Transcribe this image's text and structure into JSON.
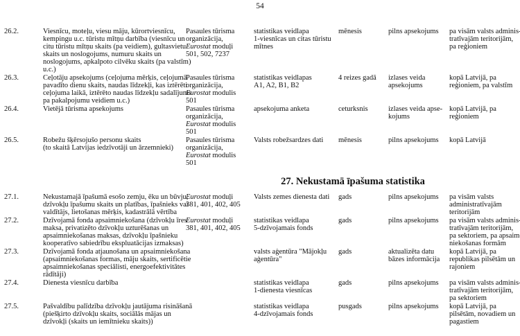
{
  "page_number": "54",
  "section_27_title": "27. Nekustamā īpašuma statistika",
  "rows": [
    {
      "num": "26.2.",
      "desc": "Viesnīcu, moteļu, viesu māju, kūrortviesnīcu,\nkempingu u.c. tūristu mītņu darbība (viesnīcu un\ncitu tūristu mītņu skaits (pa veidiem), gultasvietu\nskaits un noslogojums, numuru skaits un\nnoslogojums, apkalpoto cilvēku skaits (pa valstīm)\nu.c.)",
      "src_org": "Pasaules tūrisma\norganizācija,\n",
      "src_eu": "Eurostat",
      "src_rest": " moduļi\n501, 502, 7237",
      "form": "statistikas veidlapa\n1-viesnīcas un citas tūristu\nmītnes",
      "freq": "mēnesis",
      "meth": "pilns apsekojums",
      "det": "pa visām valsts adminis-\ntratīvajām teritorijām,\npa reģioniem"
    },
    {
      "num": "26.3.",
      "desc": "Ceļotāju apsekojums (ceļojuma mērķis, ceļojumā\npavadīto dienu skaits, naudas līdzekļi, kas iztērēti\nceļojuma laikā, iztērēto naudas līdzekļu sadalījums\npa pakalpojumu veidiem u.c.)",
      "src_org": "Pasaules tūrisma\norganizācija,\n",
      "src_eu": "Eurostat",
      "src_rest": " modulis\n501",
      "form": "statistikas veidlapas\nA1, A2, B1, B2",
      "freq": "4 reizes gadā",
      "meth": "izlases veida\napsekojums",
      "det": "kopā Latvijā, pa\nreģioniem, pa valstīm"
    },
    {
      "num": "26.4.",
      "desc": "Vietējā tūrisma apsekojums",
      "src_org": "Pasaules tūrisma\norganizācija,\n",
      "src_eu": "Eurostat",
      "src_rest": " modulis\n501",
      "form": "apsekojuma anketa",
      "freq": "ceturksnis",
      "meth": "izlases veida apse-\nkojums",
      "det": "kopā Latvijā, pa\nreģioniem"
    },
    {
      "num": "26.5.",
      "desc": "Robežu šķērsojušo personu skaits\n(to skaitā Latvijas iedzīvotāji un ārzemnieki)",
      "src_org": "Pasaules tūrisma\norganizācija,\n",
      "src_eu": "Eurostat",
      "src_rest": " modulis\n501",
      "form": "Valsts robežsardzes dati",
      "freq": "mēnesis",
      "meth": "pilns apsekojums",
      "det": "kopā Latvijā"
    },
    {
      "num": "27.1.",
      "desc": "Nekustamajā īpašumā esošo zemju, ēku un būvju,\ndzīvokļu īpašumu skaits un platības, īpašnieks vai\nvaldītājs, lietošanas mērķis, kadastrālā vērtība",
      "src_org": "",
      "src_eu": "Eurostat",
      "src_rest": " moduļi\n381, 401, 402, 405",
      "form": "Valsts zemes dienesta dati",
      "freq": "gads",
      "meth": "pilns apsekojums",
      "det": "pa visām valsts\nadministratīvajām\nteritorijām"
    },
    {
      "num": "27.2.",
      "desc": "Dzīvojamā fonda apsaimniekošana (dzīvokļu īres\nmaksa, privatizēto dzīvokļu uzturēšanas un\napsaimniekošanas maksas, dzīvokļu īpašnieku\nkooperatīvo sabiedrību ekspluatācijas izmaksas)",
      "src_org": "",
      "src_eu": "Eurostat",
      "src_rest": " moduļi\n381, 401, 402, 405",
      "form": "statistikas veidlapa\n5-dzīvojamais fonds",
      "freq": "gads",
      "meth": "pilns apsekojums",
      "det": "pa visām valsts adminis-\ntratīvajām teritorijām,\npa sektoriem, pa apsaim-\nniekošanas formām"
    },
    {
      "num": "27.3.",
      "desc": "Dzīvojamā fonda atjaunošana un apsaimniekošana\n(apsaimniekošanas formas, māju skaits, sertificētie\napsaimniekošanas speciālisti, energoefektivitātes\nrādītāji)",
      "src_org": "",
      "src_eu": "",
      "src_rest": "",
      "form": "valsts aģentūra \"Mājokļu\naģentūra\"",
      "freq": "gads",
      "meth": "aktualizēta datu\nbāzes informācija",
      "det": "kopā Latvijā, pa\nrepublikas pilsētām un\nrajoniem"
    },
    {
      "num": "27.4.",
      "desc": "Dienesta viesnīcu darbība",
      "src_org": "",
      "src_eu": "",
      "src_rest": "",
      "form": "statistikas veidlapa\n1-dienesta viesnīcas",
      "freq": "gads",
      "meth": "pilns apsekojums",
      "det": "pa visām valsts adminis-\ntratīvajām teritorijām,\npa sektoriem"
    },
    {
      "num": "27.5.",
      "desc": "Pašvaldību palīdzība dzīvokļu jautājuma risināšanā\n(piešķirto dzīvokļu skaits, sociālās mājas un\ndzīvokļi (skaits un iemītnieku skaits))",
      "src_org": "",
      "src_eu": "",
      "src_rest": "",
      "form": "statistikas veidlapa\n4-dzīvojamais fonds",
      "freq": "pusgads",
      "meth": "pilns apsekojums",
      "det": "kopā Latvijā, pa\npilsētām, novadiem un\npagastiem"
    }
  ]
}
